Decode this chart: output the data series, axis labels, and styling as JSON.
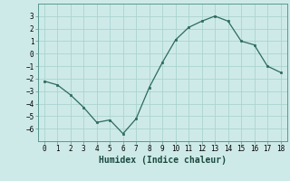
{
  "x": [
    0,
    1,
    2,
    3,
    4,
    5,
    6,
    7,
    8,
    9,
    10,
    11,
    12,
    13,
    14,
    15,
    16,
    17,
    18
  ],
  "y": [
    -2.2,
    -2.5,
    -3.3,
    -4.3,
    -5.5,
    -5.3,
    -6.4,
    -5.2,
    -2.7,
    -0.7,
    1.1,
    2.1,
    2.6,
    3.0,
    2.6,
    1.0,
    0.7,
    -1.0,
    -1.5
  ],
  "line_color": "#2d6b5e",
  "marker_color": "#2d6b5e",
  "bg_color": "#ceeae8",
  "grid_color": "#aad4cf",
  "xlabel": "Humidex (Indice chaleur)",
  "ylim": [
    -7,
    4
  ],
  "xlim": [
    -0.5,
    18.5
  ],
  "yticks": [
    -6,
    -5,
    -4,
    -3,
    -2,
    -1,
    0,
    1,
    2,
    3
  ],
  "xticks": [
    0,
    1,
    2,
    3,
    4,
    5,
    6,
    7,
    8,
    9,
    10,
    11,
    12,
    13,
    14,
    15,
    16,
    17,
    18
  ],
  "tick_fontsize": 5.5,
  "label_fontsize": 7.0
}
